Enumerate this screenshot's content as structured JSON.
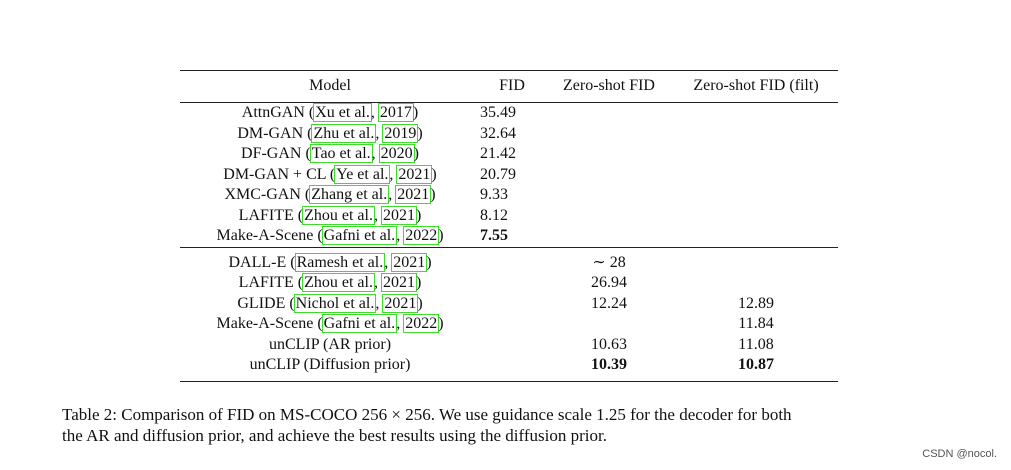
{
  "table": {
    "headers": [
      "Model",
      "FID",
      "Zero-shot FID",
      "Zero-shot FID (filt)"
    ],
    "group1": [
      {
        "name": "AttnGAN",
        "cite_author": "Xu et al.",
        "cite_year": "2017",
        "fid": "35.49",
        "zs": "",
        "zsf": ""
      },
      {
        "name": "DM-GAN",
        "cite_author": "Zhu et al.",
        "cite_year": "2019",
        "fid": "32.64",
        "zs": "",
        "zsf": ""
      },
      {
        "name": "DF-GAN",
        "cite_author": "Tao et al.",
        "cite_year": "2020",
        "fid": "21.42",
        "zs": "",
        "zsf": ""
      },
      {
        "name": "DM-GAN + CL",
        "cite_author": "Ye et al.",
        "cite_year": "2021",
        "fid": "20.79",
        "zs": "",
        "zsf": ""
      },
      {
        "name": "XMC-GAN",
        "cite_author": "Zhang et al.",
        "cite_year": "2021",
        "fid": "9.33",
        "zs": "",
        "zsf": ""
      },
      {
        "name": "LAFITE",
        "cite_author": "Zhou et al.",
        "cite_year": "2021",
        "fid": "8.12",
        "zs": "",
        "zsf": ""
      },
      {
        "name": "Make-A-Scene",
        "cite_author": "Gafni et al.",
        "cite_year": "2022",
        "fid": "7.55",
        "zs": "",
        "zsf": ""
      }
    ],
    "group2": [
      {
        "name": "DALL-E",
        "cite_author": "Ramesh et al.",
        "cite_year": "2021",
        "fid": "",
        "zs": "∼ 28",
        "zsf": ""
      },
      {
        "name": "LAFITE",
        "cite_author": "Zhou et al.",
        "cite_year": "2021",
        "fid": "",
        "zs": "26.94",
        "zsf": ""
      },
      {
        "name": "GLIDE",
        "cite_author": "Nichol et al.",
        "cite_year": "2021",
        "fid": "",
        "zs": "12.24",
        "zsf": "12.89"
      },
      {
        "name": "Make-A-Scene",
        "cite_author": "Gafni et al.",
        "cite_year": "2022",
        "fid": "",
        "zs": "",
        "zsf": "11.84"
      },
      {
        "name": "unCLIP (AR prior)",
        "fid": "",
        "zs": "10.63",
        "zsf": "11.08"
      },
      {
        "name": "unCLIP (Diffusion prior)",
        "fid": "",
        "zs": "10.39",
        "zsf": "10.87"
      }
    ]
  },
  "caption": {
    "line1": "Table 2:  Comparison of FID on MS-COCO 256 × 256. We use guidance scale 1.25 for the decoder for both",
    "line2": "the AR and diffusion prior, and achieve the best results using the diffusion prior."
  },
  "watermark": "CSDN @nocol.",
  "colors": {
    "citation_box": "#3ddc2e"
  }
}
